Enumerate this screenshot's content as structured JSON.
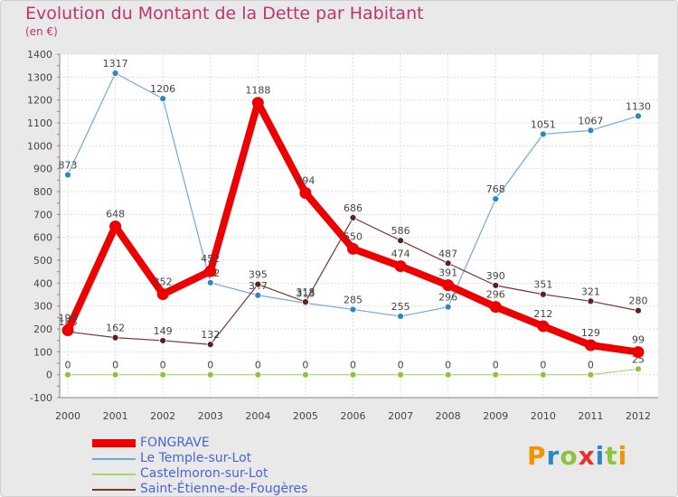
{
  "header": {
    "title": "Evolution du Montant de la Dette par Habitant",
    "subtitle": "(en €)"
  },
  "logo": {
    "text": "Proxiti",
    "colors": [
      "#f29400",
      "#2f86c6",
      "#8cc43d",
      "#e6332a",
      "#2f86c6",
      "#8cc43d",
      "#f29400"
    ]
  },
  "chart_data": {
    "type": "line",
    "x": [
      "2000",
      "2001",
      "2002",
      "2003",
      "2004",
      "2005",
      "2006",
      "2007",
      "2008",
      "2009",
      "2010",
      "2011",
      "2012"
    ],
    "ylim": [
      -100,
      1400
    ],
    "yticks": [
      -100,
      0,
      100,
      200,
      300,
      400,
      500,
      600,
      700,
      800,
      900,
      1000,
      1100,
      1200,
      1300,
      1400
    ],
    "grid": true,
    "legend": "bottom-left",
    "series": [
      {
        "name": "Le Temple-sur-Lot",
        "color": "#6fa8dc",
        "marker": "#2f86c6",
        "width": 1.2,
        "radius": 3.5,
        "values": [
          873,
          1317,
          1206,
          402,
          347,
          313,
          285,
          255,
          296,
          768,
          1051,
          1067,
          1130
        ],
        "labels": [
          "873",
          "1317",
          "1206",
          "402",
          "347",
          "313",
          "285",
          "255",
          "296",
          "768",
          "1051",
          "1067",
          "1130"
        ]
      },
      {
        "name": "Castelmoron-sur-Lot",
        "color": "#a5d86a",
        "marker": "#8cc43d",
        "width": 1.2,
        "radius": 3.5,
        "values": [
          0,
          0,
          0,
          0,
          0,
          0,
          0,
          0,
          0,
          0,
          0,
          0,
          25
        ],
        "labels": [
          "0",
          "0",
          "0",
          "0",
          "0",
          "0",
          "0",
          "0",
          "0",
          "0",
          "0",
          "0",
          "25"
        ]
      },
      {
        "name": "Saint-Étienne-de-Fougères",
        "color": "#7b3434",
        "marker": "#5e1f1f",
        "width": 1.2,
        "radius": 3.5,
        "values": [
          188,
          162,
          149,
          132,
          395,
          318,
          686,
          586,
          487,
          390,
          351,
          321,
          280
        ],
        "labels": [
          "188",
          "162",
          "149",
          "132",
          "395",
          "318",
          "686",
          "586",
          "487",
          "390",
          "351",
          "321",
          "280"
        ]
      },
      {
        "name": "FONGRAVE",
        "color": "#ee0000",
        "marker": "#ee0000",
        "width": 8,
        "radius": 6.5,
        "values": [
          194,
          648,
          352,
          452,
          1188,
          794,
          550,
          474,
          391,
          296,
          212,
          129,
          99
        ],
        "labels": [
          "194",
          "648",
          "352",
          "452",
          "1188",
          "794",
          "550",
          "474",
          "391",
          "296",
          "212",
          "129",
          "99"
        ]
      }
    ],
    "legend_entries": [
      {
        "name": "FONGRAVE",
        "color": "#ee0000",
        "text_color": "#4a62d8",
        "thickness": 9
      },
      {
        "name": "Le Temple-sur-Lot",
        "color": "#6fa8dc",
        "text_color": "#4a62d8",
        "thickness": 2
      },
      {
        "name": "Castelmoron-sur-Lot",
        "color": "#a5d86a",
        "text_color": "#4a62d8",
        "thickness": 2
      },
      {
        "name": "Saint-Étienne-de-Fougères",
        "color": "#7b3434",
        "text_color": "#4a62d8",
        "thickness": 2
      }
    ]
  }
}
